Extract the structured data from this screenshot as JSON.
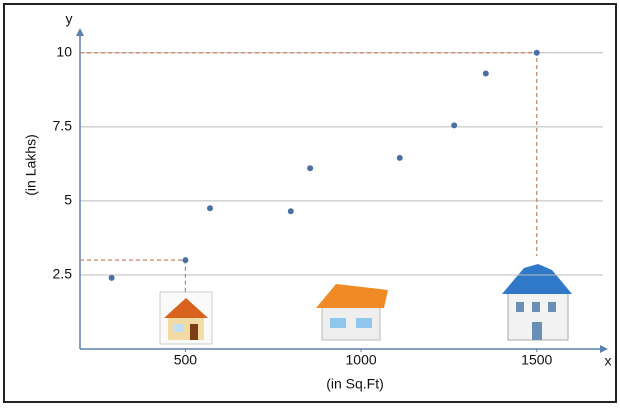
{
  "chart_data": {
    "type": "scatter",
    "x_label": "(in Sq.Ft)",
    "y_label": "(in Lakhs)",
    "x_axis_name": "x",
    "y_axis_name": "y",
    "x": [
      290,
      500,
      570,
      800,
      855,
      1110,
      1265,
      1355,
      1500
    ],
    "y": [
      2.4,
      3,
      4.75,
      4.65,
      6.1,
      6.45,
      7.55,
      9.3,
      10
    ],
    "color": "#4a6fa5",
    "xlim": [
      200,
      1680
    ],
    "ylim": [
      0,
      10.6
    ],
    "xticks": [
      500,
      1000,
      1500
    ],
    "yticks": [
      2.5,
      5,
      7.5,
      10
    ],
    "grid": true
  }
}
